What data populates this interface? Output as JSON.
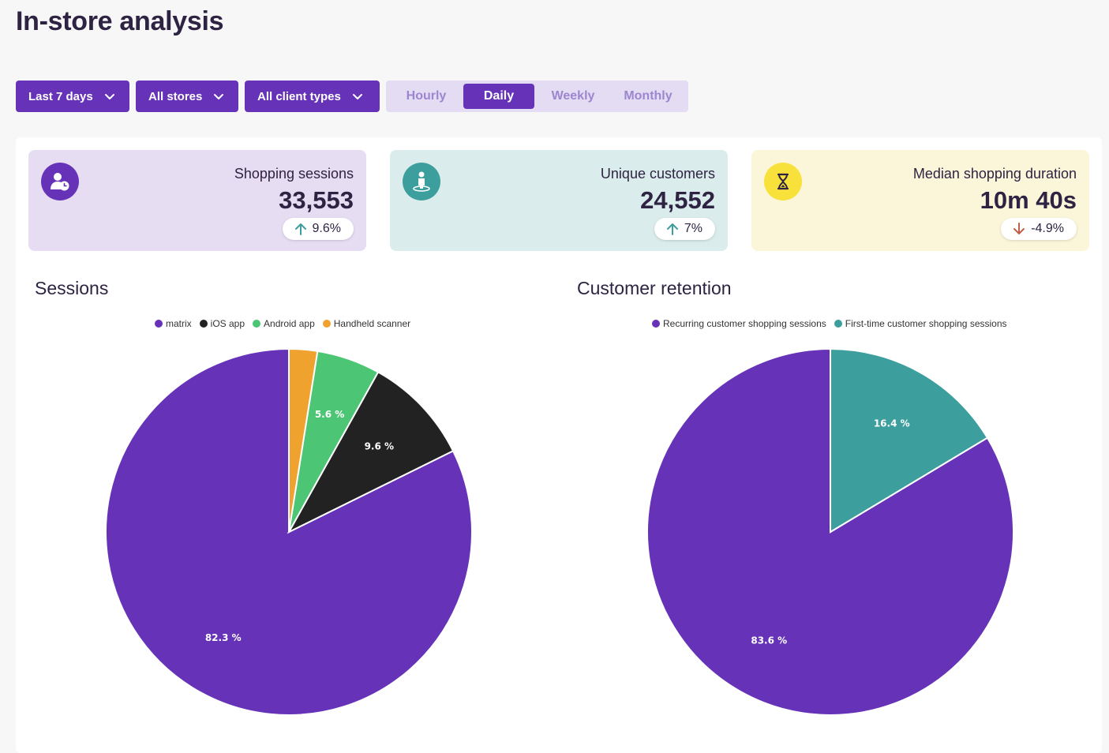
{
  "page": {
    "title": "In-store analysis"
  },
  "filters": {
    "period": "Last 7 days",
    "stores": "All stores",
    "client_types": "All client types"
  },
  "granularity": {
    "options": [
      "Hourly",
      "Daily",
      "Weekly",
      "Monthly"
    ],
    "selected": "Daily"
  },
  "kpis": [
    {
      "label": "Shopping sessions",
      "value": "33,553",
      "change": "9.6%",
      "direction": "up",
      "icon": "user-clock-icon",
      "bg": "#e6ddf2",
      "icon_bg": "#6633b8",
      "arrow_color": "#3e9e9e"
    },
    {
      "label": "Unique customers",
      "value": "24,552",
      "change": "7%",
      "direction": "up",
      "icon": "person-location-icon",
      "bg": "#daeceb",
      "icon_bg": "#3d9e9e",
      "arrow_color": "#3e9e9e"
    },
    {
      "label": "Median shopping duration",
      "value": "10m 40s",
      "change": "-4.9%",
      "direction": "down",
      "icon": "hourglass-icon",
      "bg": "#fbf6da",
      "icon_bg": "#f7e13a",
      "arrow_color": "#c0604a"
    }
  ],
  "chart_data": [
    {
      "type": "pie",
      "title": "Sessions",
      "legend_position": "top",
      "categories": [
        "matrix",
        "iOS app",
        "Android app",
        "Handheld scanner"
      ],
      "values": [
        82.3,
        9.6,
        5.6,
        2.5
      ],
      "labels": [
        "82.3 %",
        "9.6 %",
        "5.6 %",
        ""
      ],
      "colors": [
        "#6633b8",
        "#222222",
        "#4cc674",
        "#f0a22e"
      ]
    },
    {
      "type": "pie",
      "title": "Customer retention",
      "legend_position": "top",
      "categories": [
        "Recurring customer shopping sessions",
        "First-time customer shopping sessions"
      ],
      "values": [
        83.6,
        16.4
      ],
      "labels": [
        "83.6 %",
        "16.4 %"
      ],
      "colors": [
        "#6633b8",
        "#3d9e9e"
      ]
    }
  ]
}
